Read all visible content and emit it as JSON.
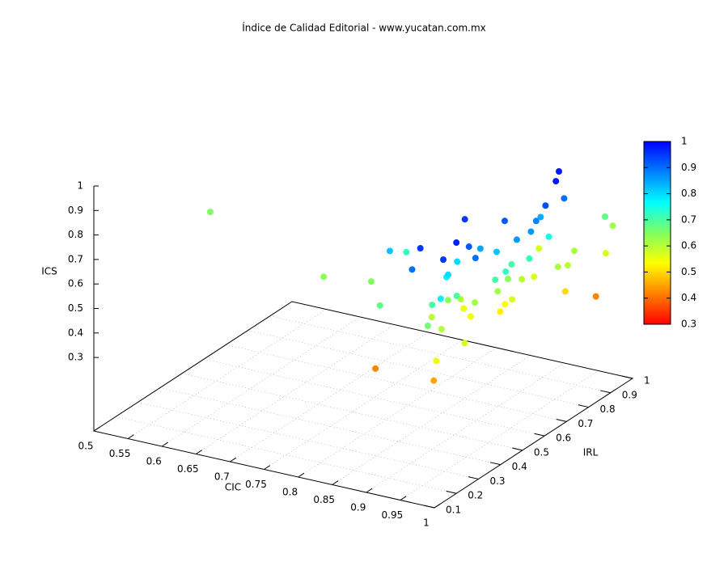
{
  "chart_data": {
    "type": "scatter3d",
    "title": "Índice de Calidad Editorial - www.yucatan.com.mx",
    "xlabel": "CIC",
    "ylabel": "IRL",
    "zlabel": "ICS",
    "xlim": [
      0.5,
      1
    ],
    "xticks": [
      0.5,
      0.55,
      0.6,
      0.65,
      0.7,
      0.75,
      0.8,
      0.85,
      0.9,
      0.95,
      1
    ],
    "ylim": [
      0.1,
      1
    ],
    "yticks": [
      0.1,
      0.2,
      0.3,
      0.4,
      0.5,
      0.6,
      0.7,
      0.8,
      0.9,
      1
    ],
    "zlim": [
      0,
      1
    ],
    "zticks": [
      0.3,
      0.4,
      0.5,
      0.6,
      0.7,
      0.8,
      0.9,
      1
    ],
    "cblim": [
      0.3,
      1
    ],
    "cbticks": [
      0.3,
      0.4,
      0.5,
      0.6,
      0.7,
      0.8,
      0.9,
      1
    ],
    "palette": [
      "#ff0000",
      "#ff8000",
      "#ffff00",
      "#80ff60",
      "#00ffff",
      "#0080ff",
      "#0000ff"
    ],
    "grid": true,
    "x": [
      0.527,
      0.755,
      0.819,
      0.881,
      0.875,
      0.971,
      0.982,
      0.991,
      0.858,
      0.837,
      0.94,
      0.946,
      0.984,
      0.978,
      0.94,
      0.978,
      0.965,
      0.996,
      0.974,
      0.976,
      0.994,
      0.996,
      0.992,
      0.974,
      0.997,
      0.988,
      0.975,
      0.993,
      0.979,
      0.978,
      0.977,
      0.995,
      0.995,
      0.986,
      0.973,
      0.986,
      0.982,
      0.914,
      0.956,
      0.959,
      0.96,
      0.964,
      0.978,
      0.972,
      0.961,
      0.97,
      0.954,
      0.957,
      0.945,
      0.955,
      0.926,
      0.93,
      0.957,
      0.977,
      0.947,
      0.953,
      0.941,
      0.945,
      0.924,
      0.959,
      0.955,
      0.924,
      0.982
    ],
    "y": [
      0.545,
      0.355,
      0.373,
      0.221,
      0.219,
      0.187,
      0.165,
      0.265,
      0.337,
      0.477,
      0.222,
      0.166,
      0.19,
      0.268,
      0.424,
      0.325,
      0.417,
      0.299,
      0.5,
      0.457,
      0.493,
      0.551,
      0.587,
      0.663,
      0.614,
      0.689,
      0.743,
      0.711,
      0.685,
      0.943,
      0.981,
      0.894,
      0.849,
      0.738,
      0.819,
      0.749,
      0.717,
      0.841,
      0.689,
      0.624,
      0.558,
      0.562,
      0.492,
      0.463,
      0.508,
      0.546,
      0.563,
      0.532,
      0.435,
      0.423,
      0.449,
      0.379,
      0.335,
      0.2,
      0.319,
      0.308,
      0.386,
      0.26,
      0.323,
      0.197,
      0.272,
      0.468,
      0.587
    ],
    "z": [
      0.65,
      0.64,
      0.65,
      0.68,
      0.42,
      0.45,
      0.55,
      0.57,
      0.82,
      0.72,
      0.95,
      0.9,
      0.95,
      0.97,
      0.95,
      0.92,
      0.85,
      0.9,
      0.92,
      0.82,
      0.86,
      0.86,
      0.88,
      0.84,
      0.93,
      0.98,
      0.98,
      0.9,
      0.75,
      0.68,
      0.62,
      0.57,
      0.42,
      0.5,
      0.61,
      0.6,
      0.61,
      0.57,
      0.57,
      0.6,
      0.64,
      0.7,
      0.72,
      0.7,
      0.62,
      0.57,
      0.53,
      0.52,
      0.55,
      0.62,
      0.6,
      0.64,
      0.7,
      0.78,
      0.78,
      0.8,
      0.8,
      0.7,
      0.6,
      0.66,
      0.6,
      0.55,
      0.72
    ]
  }
}
